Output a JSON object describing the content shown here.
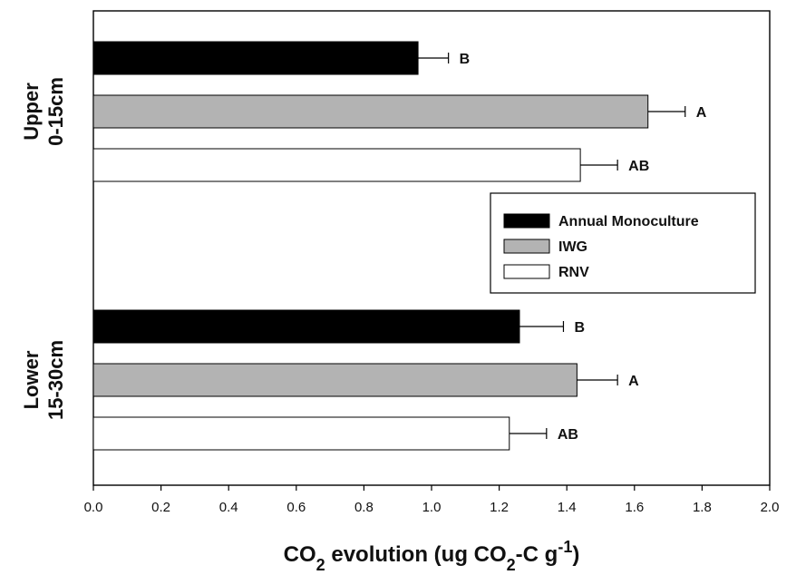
{
  "chart_data": {
    "type": "bar",
    "orientation": "horizontal",
    "xlabel": {
      "parts": [
        {
          "text": "CO",
          "shift": "none"
        },
        {
          "text": "2",
          "shift": "sub"
        },
        {
          "text": " evolution (ug CO",
          "shift": "none"
        },
        {
          "text": "2",
          "shift": "sub"
        },
        {
          "text": "-C g",
          "shift": "none"
        },
        {
          "text": "-1",
          "shift": "super"
        },
        {
          "text": ")",
          "shift": "none"
        }
      ]
    },
    "xlim": [
      0,
      2.0
    ],
    "xticks": [
      "0.0",
      "0.2",
      "0.4",
      "0.6",
      "0.8",
      "1.0",
      "1.2",
      "1.4",
      "1.6",
      "1.8",
      "2.0"
    ],
    "grid": false,
    "legend_position": "right",
    "categories": [
      {
        "lines": [
          "Upper",
          "0-15cm"
        ]
      },
      {
        "lines": [
          "Lower",
          "15-30cm"
        ]
      }
    ],
    "series": [
      {
        "name": "Annual Monoculture",
        "color": "#000000",
        "values": [
          0.96,
          1.26
        ],
        "errors": [
          0.09,
          0.13
        ],
        "significance": [
          "B",
          "B"
        ]
      },
      {
        "name": "IWG",
        "color": "#b3b3b3",
        "values": [
          1.64,
          1.43
        ],
        "errors": [
          0.11,
          0.12
        ],
        "significance": [
          "A",
          "A"
        ]
      },
      {
        "name": "RNV",
        "color": "#ffffff",
        "values": [
          1.44,
          1.23
        ],
        "errors": [
          0.11,
          0.11
        ],
        "significance": [
          "AB",
          "AB"
        ]
      }
    ]
  }
}
